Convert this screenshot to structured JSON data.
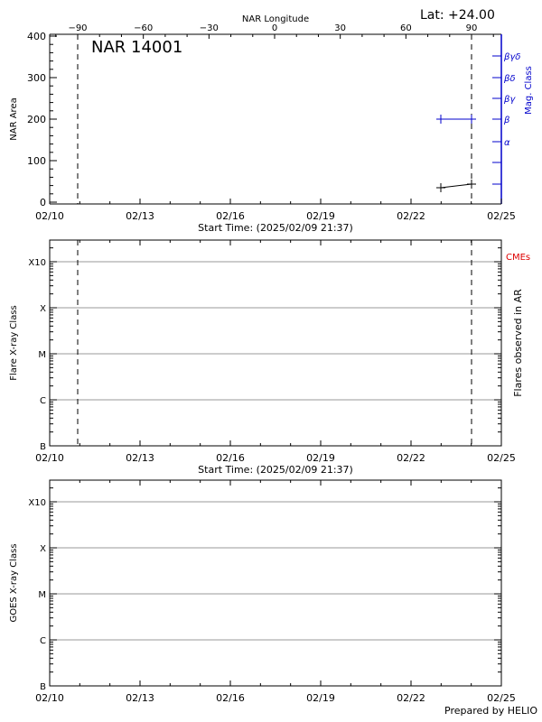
{
  "header": {
    "region_title": "NAR 14001",
    "latitude_label": "Lat: +24.00",
    "top_axis_title": "NAR Longitude",
    "top_axis_ticks": [
      "-90",
      "-60",
      "-30",
      "0",
      "30",
      "60",
      "90"
    ]
  },
  "panel1": {
    "ylabel": "NAR Area",
    "yticks": [
      "0",
      "100",
      "200",
      "300",
      "400"
    ],
    "right_label": "Mag. Class",
    "mag_classes": [
      "α",
      "β",
      "βγ",
      "βδ",
      "βγδ"
    ],
    "xticks": [
      "02/10",
      "02/13",
      "02/16",
      "02/19",
      "02/22",
      "02/25"
    ],
    "start_time": "Start Time: (2025/02/09 21:37)"
  },
  "panel2": {
    "ylabel": "Flare X-ray Class",
    "yticks": [
      "B",
      "C",
      "M",
      "X",
      "X10"
    ],
    "right_label": "Flares observed in AR",
    "cme_label": "CMEs",
    "xticks": [
      "02/10",
      "02/13",
      "02/16",
      "02/19",
      "02/22",
      "02/25"
    ],
    "start_time": "Start Time: (2025/02/09 21:37)"
  },
  "panel3": {
    "ylabel": "GOES X-ray Class",
    "yticks": [
      "B",
      "C",
      "M",
      "X",
      "X10"
    ],
    "xticks": [
      "02/10",
      "02/13",
      "02/16",
      "02/19",
      "02/22",
      "02/25"
    ]
  },
  "footer": {
    "credit": "Prepared by HELIO"
  },
  "colors": {
    "axis": "#000000",
    "mag_axis": "#0000cc",
    "cme": "#dd0000",
    "grid": "#999999"
  },
  "chart_data": [
    {
      "type": "line",
      "title": "NAR 14001",
      "xlabel": "Start Time: (2025/02/09 21:37)",
      "ylabel": "NAR Area",
      "x": [
        "02/23 00:00",
        "02/24 00:00"
      ],
      "series": [
        {
          "name": "NAR Area",
          "values": [
            38,
            45
          ]
        },
        {
          "name": "Mag. Class",
          "values": [
            "β",
            "β"
          ]
        }
      ],
      "ylim": [
        0,
        400
      ],
      "xlim": [
        "02/10",
        "02/25"
      ],
      "top_axis": {
        "label": "NAR Longitude",
        "ticks": [
          -90,
          -60,
          -30,
          0,
          30,
          60,
          90
        ]
      },
      "vertical_markers": [
        "02/10 ~21:00 (lon -90)",
        "02/24 (lon +90)"
      ],
      "annotation": "Lat: +24.00"
    },
    {
      "type": "scatter",
      "title": "Flares observed in AR",
      "ylabel": "Flare X-ray Class",
      "yticks": [
        "B",
        "C",
        "M",
        "X",
        "X10"
      ],
      "series": [],
      "legend": [
        "CMEs"
      ],
      "grid": true
    },
    {
      "type": "line",
      "title": "GOES X-ray",
      "ylabel": "GOES X-ray Class",
      "yticks": [
        "B",
        "C",
        "M",
        "X",
        "X10"
      ],
      "series": [],
      "grid": true
    }
  ]
}
